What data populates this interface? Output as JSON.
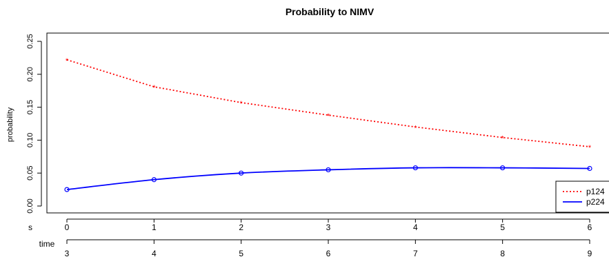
{
  "chart_data": {
    "type": "line",
    "title": "Probability to NIMV",
    "ylabel": "probability",
    "ylim": [
      0,
      0.25
    ],
    "yticks": [
      "0.00",
      "0.05",
      "0.10",
      "0.15",
      "0.20",
      "0.25"
    ],
    "x_axis_label": "s",
    "x": [
      0,
      1,
      2,
      3,
      4,
      5,
      6
    ],
    "xticks": [
      "0",
      "1",
      "2",
      "3",
      "4",
      "5",
      "6"
    ],
    "secondary_axis_label": "time",
    "secondary_ticks": [
      "3",
      "4",
      "5",
      "6",
      "7",
      "8",
      "9"
    ],
    "grid": false,
    "legend_position": "bottom-right",
    "series": [
      {
        "name": "p124",
        "color": "#ff0000",
        "line_style": "dotted",
        "marker": "star",
        "values": [
          0.222,
          0.181,
          0.157,
          0.138,
          0.12,
          0.104,
          0.09
        ]
      },
      {
        "name": "p224",
        "color": "#0000ff",
        "line_style": "solid",
        "marker": "circle",
        "values": [
          0.025,
          0.04,
          0.05,
          0.055,
          0.058,
          0.058,
          0.057
        ],
        "smooth": true
      }
    ]
  }
}
